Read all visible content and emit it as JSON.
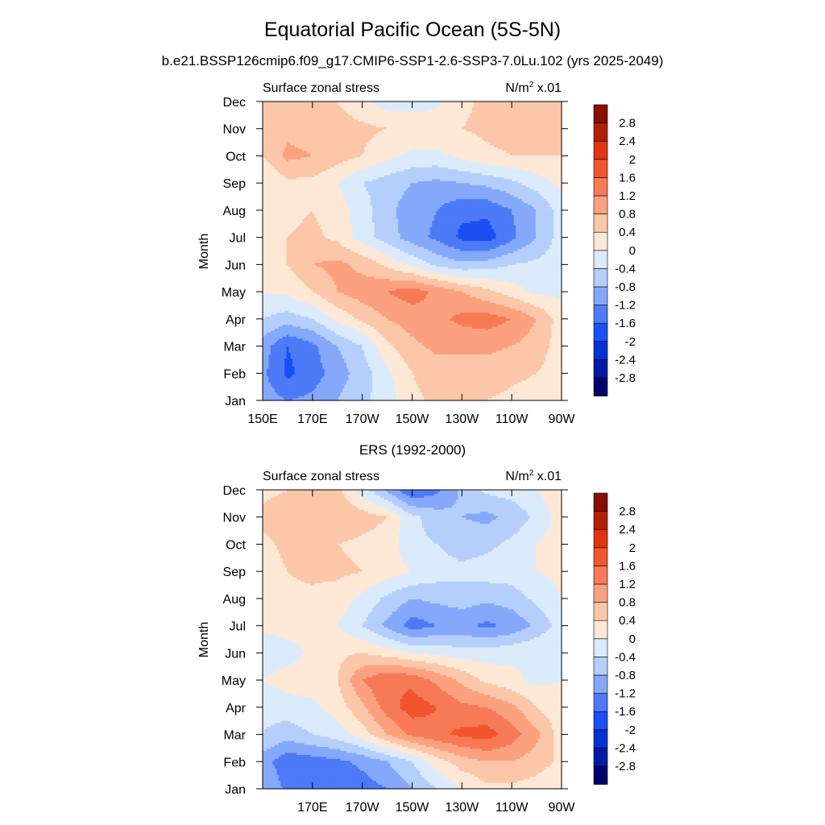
{
  "figure": {
    "title": "Equatorial Pacific Ocean (5S-5N)",
    "subtitle": "b.e21.BSSP126cmip6.f09_g17.CMIP6-SSP1-2.6-SSP3-7.0Lu.102 (yrs 2025-2049)"
  },
  "colors": {
    "levels": [
      "#00006b",
      "#001aa6",
      "#0033d1",
      "#1a4ff2",
      "#4d7af7",
      "#85a8fa",
      "#b5cffc",
      "#dbebfc",
      "#fde8d6",
      "#fcc6a8",
      "#fca180",
      "#f77a57",
      "#f2552e",
      "#e0330f",
      "#b31f04",
      "#870f00"
    ]
  },
  "chart_data": [
    {
      "type": "heatmap",
      "title": "",
      "left_label": "Surface zonal stress",
      "right_label_base": "N/m",
      "right_label_sup": "2",
      "right_label_tail": " x.01",
      "ylabel": "Month",
      "xlabel": "",
      "x_ticks": [
        "150E",
        "170E",
        "170W",
        "150W",
        "130W",
        "110W",
        "90W"
      ],
      "y_ticks": [
        "Jan",
        "Feb",
        "Mar",
        "Apr",
        "May",
        "Jun",
        "Jul",
        "Aug",
        "Sep",
        "Oct",
        "Nov",
        "Dec"
      ],
      "xlim_deg_east": [
        150,
        270
      ],
      "colorbar_labels": [
        "-2.8",
        "-2.4",
        "-2",
        "-1.6",
        "-1.2",
        "-0.8",
        "-0.4",
        "0",
        "0.4",
        "0.8",
        "1.2",
        "1.6",
        "2",
        "2.4",
        "2.8"
      ],
      "lon": [
        150,
        160,
        170,
        180,
        190,
        200,
        210,
        220,
        230,
        240,
        250,
        260,
        270
      ],
      "values": [
        [
          -1.0,
          -1.2,
          -1.1,
          -0.8,
          -0.5,
          -0.2,
          0.3,
          0.5,
          0.5,
          0.4,
          0.3,
          0.2,
          0.1
        ],
        [
          -1.1,
          -1.7,
          -1.4,
          -1.0,
          -0.6,
          -0.1,
          0.4,
          0.6,
          0.6,
          0.6,
          0.5,
          0.4,
          0.2
        ],
        [
          -1.0,
          -1.6,
          -1.3,
          -0.8,
          -0.4,
          0.3,
          0.7,
          0.9,
          0.9,
          0.9,
          0.8,
          0.6,
          0.2
        ],
        [
          -0.4,
          -0.6,
          -0.4,
          0.1,
          0.5,
          0.8,
          1.0,
          1.1,
          1.3,
          1.4,
          1.2,
          0.8,
          0.2
        ],
        [
          0.0,
          0.1,
          0.4,
          0.8,
          1.0,
          1.2,
          1.4,
          1.1,
          0.8,
          0.5,
          0.2,
          -0.1,
          -0.1
        ],
        [
          0.1,
          0.4,
          0.8,
          0.9,
          0.7,
          0.3,
          -0.1,
          -0.5,
          -0.7,
          -0.6,
          -0.4,
          -0.3,
          -0.2
        ],
        [
          0.1,
          0.4,
          0.5,
          0.3,
          -0.2,
          -0.6,
          -1.0,
          -1.3,
          -1.7,
          -1.8,
          -1.3,
          -0.8,
          -0.2
        ],
        [
          0.1,
          0.3,
          0.4,
          0.2,
          -0.2,
          -0.7,
          -1.0,
          -1.2,
          -1.5,
          -1.5,
          -1.2,
          -0.8,
          -0.2
        ],
        [
          0.0,
          0.3,
          0.3,
          0.0,
          -0.4,
          -0.6,
          -0.8,
          -0.9,
          -0.8,
          -0.7,
          -0.5,
          -0.2,
          0.1
        ],
        [
          0.4,
          0.9,
          0.8,
          0.6,
          0.4,
          0.1,
          -0.1,
          -0.1,
          0.1,
          0.3,
          0.4,
          0.4,
          0.4
        ],
        [
          0.5,
          0.7,
          0.6,
          0.6,
          0.5,
          0.4,
          0.3,
          0.3,
          0.4,
          0.5,
          0.6,
          0.6,
          0.6
        ],
        [
          0.4,
          0.6,
          0.5,
          0.4,
          0.1,
          -0.2,
          -0.2,
          -0.1,
          0.3,
          0.5,
          0.6,
          0.5,
          0.5
        ]
      ]
    },
    {
      "type": "heatmap",
      "title": "ERS (1992-2000)",
      "left_label": "Surface zonal stress",
      "right_label_base": "N/m",
      "right_label_sup": "2",
      "right_label_tail": " x.01",
      "ylabel": "Month",
      "xlabel": "",
      "x_ticks": [
        "",
        "170E",
        "170W",
        "150W",
        "130W",
        "110W",
        "90W"
      ],
      "y_ticks": [
        "Jan",
        "Feb",
        "Mar",
        "Apr",
        "May",
        "Jun",
        "Jul",
        "Aug",
        "Sep",
        "Oct",
        "Nov",
        "Dec"
      ],
      "xlim_deg_east": [
        150,
        270
      ],
      "colorbar_labels": [
        "-2.8",
        "-2.4",
        "-2",
        "-1.6",
        "-1.2",
        "-0.8",
        "-0.4",
        "0",
        "0.4",
        "0.8",
        "1.2",
        "1.6",
        "2",
        "2.4",
        "2.8"
      ],
      "lon": [
        150,
        160,
        170,
        180,
        190,
        200,
        210,
        220,
        230,
        240,
        250,
        260,
        270
      ],
      "values": [
        [
          -0.8,
          -1.3,
          -1.5,
          -1.6,
          -1.4,
          -1.2,
          -0.8,
          -0.4,
          0.0,
          0.3,
          0.3,
          0.2,
          0.0
        ],
        [
          -1.0,
          -1.5,
          -1.4,
          -1.3,
          -1.1,
          -0.8,
          -0.4,
          0.2,
          0.6,
          0.8,
          0.8,
          0.6,
          0.3
        ],
        [
          -0.4,
          -0.6,
          -0.4,
          -0.2,
          0.2,
          0.8,
          1.3,
          1.5,
          1.7,
          1.8,
          1.4,
          0.9,
          0.2
        ],
        [
          -0.3,
          -0.2,
          -0.1,
          0.2,
          0.7,
          1.4,
          1.8,
          1.6,
          1.3,
          1.2,
          0.9,
          0.4,
          0.1
        ],
        [
          0.0,
          0.2,
          0.2,
          0.4,
          1.2,
          1.6,
          1.5,
          1.1,
          0.7,
          0.3,
          0.1,
          -0.1,
          0.0
        ],
        [
          -0.3,
          -0.2,
          0.1,
          0.3,
          0.4,
          0.2,
          0.0,
          -0.1,
          -0.2,
          -0.2,
          -0.1,
          0.0,
          0.0
        ],
        [
          0.1,
          0.2,
          0.2,
          0.0,
          -0.4,
          -0.9,
          -1.4,
          -1.2,
          -1.1,
          -1.3,
          -1.1,
          -0.7,
          -0.2
        ],
        [
          0.2,
          0.3,
          0.3,
          0.2,
          -0.1,
          -0.5,
          -0.8,
          -0.7,
          -0.6,
          -0.7,
          -0.6,
          -0.3,
          0.0
        ],
        [
          0.2,
          0.4,
          0.5,
          0.5,
          0.4,
          0.2,
          0.0,
          -0.2,
          -0.3,
          -0.2,
          -0.2,
          0.0,
          0.1
        ],
        [
          0.3,
          0.5,
          0.4,
          0.4,
          0.3,
          0.2,
          -0.3,
          -0.4,
          -0.6,
          -0.5,
          -0.3,
          0.0,
          0.2
        ],
        [
          0.5,
          0.6,
          0.7,
          0.8,
          0.6,
          0.4,
          -0.3,
          -0.6,
          -0.8,
          -0.9,
          -0.7,
          -0.3,
          0.2
        ],
        [
          0.3,
          0.4,
          0.6,
          0.5,
          -0.2,
          -0.9,
          -1.6,
          -1.3,
          -0.7,
          -0.3,
          -0.2,
          0.0,
          0.3
        ]
      ]
    }
  ]
}
